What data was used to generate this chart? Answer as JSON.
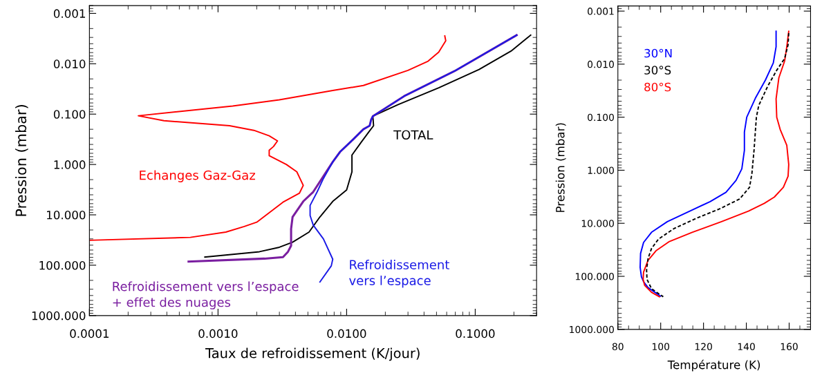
{
  "chart_data": [
    {
      "type": "line",
      "xlabel": "Taux de refroidissement (K/jour)",
      "ylabel": "Pression (mbar)",
      "log": "xy",
      "grid": false,
      "legend": false,
      "xlim": [
        0.0001,
        0.3
      ],
      "xticks": [
        {
          "value": 0.0001,
          "label": "0.0001"
        },
        {
          "value": 0.001,
          "label": "0.0010"
        },
        {
          "value": 0.01,
          "label": "0.0100"
        },
        {
          "value": 0.1,
          "label": "0.1000"
        }
      ],
      "ylim": [
        1000,
        0.0007
      ],
      "yticks": [
        {
          "value": 0.001,
          "label": "0.001"
        },
        {
          "value": 0.01,
          "label": "0.010"
        },
        {
          "value": 0.1,
          "label": "0.100"
        },
        {
          "value": 1,
          "label": "1.000"
        },
        {
          "value": 10,
          "label": "10.000"
        },
        {
          "value": 100,
          "label": "100.000"
        },
        {
          "value": 1000,
          "label": "1000.000"
        }
      ],
      "series": [
        {
          "name": "Echanges Gaz-Gaz",
          "color": "#ff0000",
          "x": [
            0.058,
            0.059,
            0.052,
            0.043,
            0.03,
            0.0135,
            0.0078,
            0.003,
            0.0013,
            0.00024,
            0.00038,
            0.00123,
            0.0019,
            0.0025,
            0.0029,
            0.0027,
            0.0025,
            0.0025,
            0.0034,
            0.0041,
            0.0046,
            0.0043,
            0.0032,
            0.002,
            0.0016,
            0.00115,
            0.00061,
            0.0001
          ],
          "values": [
            0.0028,
            0.0035,
            0.0059,
            0.0089,
            0.0135,
            0.027,
            0.034,
            0.052,
            0.069,
            0.108,
            0.135,
            0.17,
            0.21,
            0.27,
            0.34,
            0.44,
            0.52,
            0.67,
            1.0,
            1.4,
            2.6,
            3.7,
            5.6,
            14,
            17,
            22,
            28,
            32
          ]
        },
        {
          "name": "TOTAL",
          "color": "#000000",
          "x": [
            0.27,
            0.19,
            0.107,
            0.052,
            0.025,
            0.016,
            0.0162,
            0.015,
            0.0129,
            0.011,
            0.011,
            0.011,
            0.01,
            0.0078,
            0.0062,
            0.0051,
            0.0038,
            0.003,
            0.0021,
            0.00079
          ],
          "values": [
            0.0027,
            0.0056,
            0.013,
            0.03,
            0.065,
            0.11,
            0.17,
            0.22,
            0.37,
            0.65,
            0.89,
            1.4,
            3.2,
            5.4,
            11,
            22,
            35,
            44,
            54,
            69
          ]
        },
        {
          "name": "Refroidissement vers l’espace\n+ effet des nuages",
          "color": "#7a1ea0",
          "x": [
            0.21,
            0.069,
            0.028,
            0.016,
            0.0155,
            0.0151,
            0.0135,
            0.0112,
            0.0089,
            0.0078,
            0.0055,
            0.0046,
            0.0038,
            0.0037,
            0.0037,
            0.0035,
            0.0032,
            0.0023,
            0.00059
          ],
          "values": [
            0.0027,
            0.014,
            0.044,
            0.11,
            0.13,
            0.17,
            0.2,
            0.32,
            0.56,
            0.89,
            3.5,
            5.4,
            11,
            19,
            41,
            54,
            69,
            74,
            85
          ]
        },
        {
          "name": "Refroidissement\nvers l’espace",
          "color": "#1a1ae6",
          "x": [
            0.21,
            0.069,
            0.028,
            0.016,
            0.0155,
            0.0151,
            0.0135,
            0.0112,
            0.0089,
            0.0078,
            0.0066,
            0.0059,
            0.0052,
            0.0052,
            0.0055,
            0.0066,
            0.0078,
            0.0076,
            0.0062
          ],
          "values": [
            0.0027,
            0.014,
            0.044,
            0.11,
            0.13,
            0.17,
            0.2,
            0.32,
            0.56,
            0.89,
            1.9,
            3.5,
            6.5,
            10.3,
            16,
            30,
            76,
            103,
            215
          ]
        }
      ]
    },
    {
      "type": "line",
      "xlabel": "Température (K)",
      "ylabel": "Pression (mbar)",
      "log": "y",
      "grid": false,
      "legend": "top left",
      "xlim": [
        80,
        170
      ],
      "xticks": [
        80,
        100,
        120,
        140,
        160
      ],
      "ylim": [
        1000,
        0.0008
      ],
      "yticks": [
        {
          "value": 0.001,
          "label": "0.001"
        },
        {
          "value": 0.01,
          "label": "0.010"
        },
        {
          "value": 0.1,
          "label": "0.100"
        },
        {
          "value": 1,
          "label": "1.000"
        },
        {
          "value": 10,
          "label": "10.000"
        },
        {
          "value": 100,
          "label": "100.000"
        },
        {
          "value": 1000,
          "label": "1000.000"
        }
      ],
      "series": [
        {
          "name": "30°N",
          "color": "#0000ff",
          "line_style": "solid",
          "x": [
            153.9,
            153.9,
            152.6,
            148.9,
            144.2,
            140.2,
            139.1,
            139.1,
            137.9,
            135.2,
            130.5,
            123.1,
            113.6,
            103.1,
            95.7,
            92.0,
            90.6,
            90.4,
            91.0,
            92.0,
            94.1,
            99.9
          ],
          "values": [
            0.0024,
            0.0047,
            0.0095,
            0.02,
            0.044,
            0.1,
            0.19,
            0.42,
            0.94,
            1.55,
            2.6,
            3.9,
            5.9,
            9.3,
            14.8,
            23,
            37,
            68,
            102,
            126,
            163,
            236
          ]
        },
        {
          "name": "30°S",
          "color": "#000000",
          "line_style": "dashed",
          "x": [
            159.8,
            159.5,
            157.9,
            154.2,
            150.0,
            145.8,
            144.7,
            144.2,
            143.6,
            142.6,
            141.5,
            136.8,
            127.3,
            116.8,
            106.2,
            98.9,
            95.7,
            94.1,
            93.4,
            93.6,
            95.7,
            101.2
          ],
          "values": [
            0.0026,
            0.0043,
            0.0078,
            0.013,
            0.026,
            0.06,
            0.1,
            0.19,
            0.42,
            1.15,
            2.1,
            3.5,
            5.4,
            8.0,
            12.6,
            20,
            30,
            46,
            76,
            114,
            171,
            243
          ]
        },
        {
          "name": "80°S",
          "color": "#ff0000",
          "line_style": "solid",
          "x": [
            159.8,
            158.9,
            157.9,
            155.2,
            153.9,
            154.2,
            155.8,
            158.9,
            159.8,
            159.5,
            157.3,
            153.1,
            148.4,
            141.0,
            128.4,
            114.7,
            104.1,
            97.8,
            94.1,
            92.0,
            91.8,
            92.5,
            95.7,
            99.4
          ],
          "values": [
            0.0024,
            0.0047,
            0.0087,
            0.018,
            0.045,
            0.1,
            0.17,
            0.34,
            0.78,
            1.3,
            2.1,
            3.2,
            4.2,
            5.9,
            9.3,
            14.8,
            22,
            33,
            50,
            83,
            114,
            148,
            200,
            243
          ]
        }
      ]
    }
  ]
}
